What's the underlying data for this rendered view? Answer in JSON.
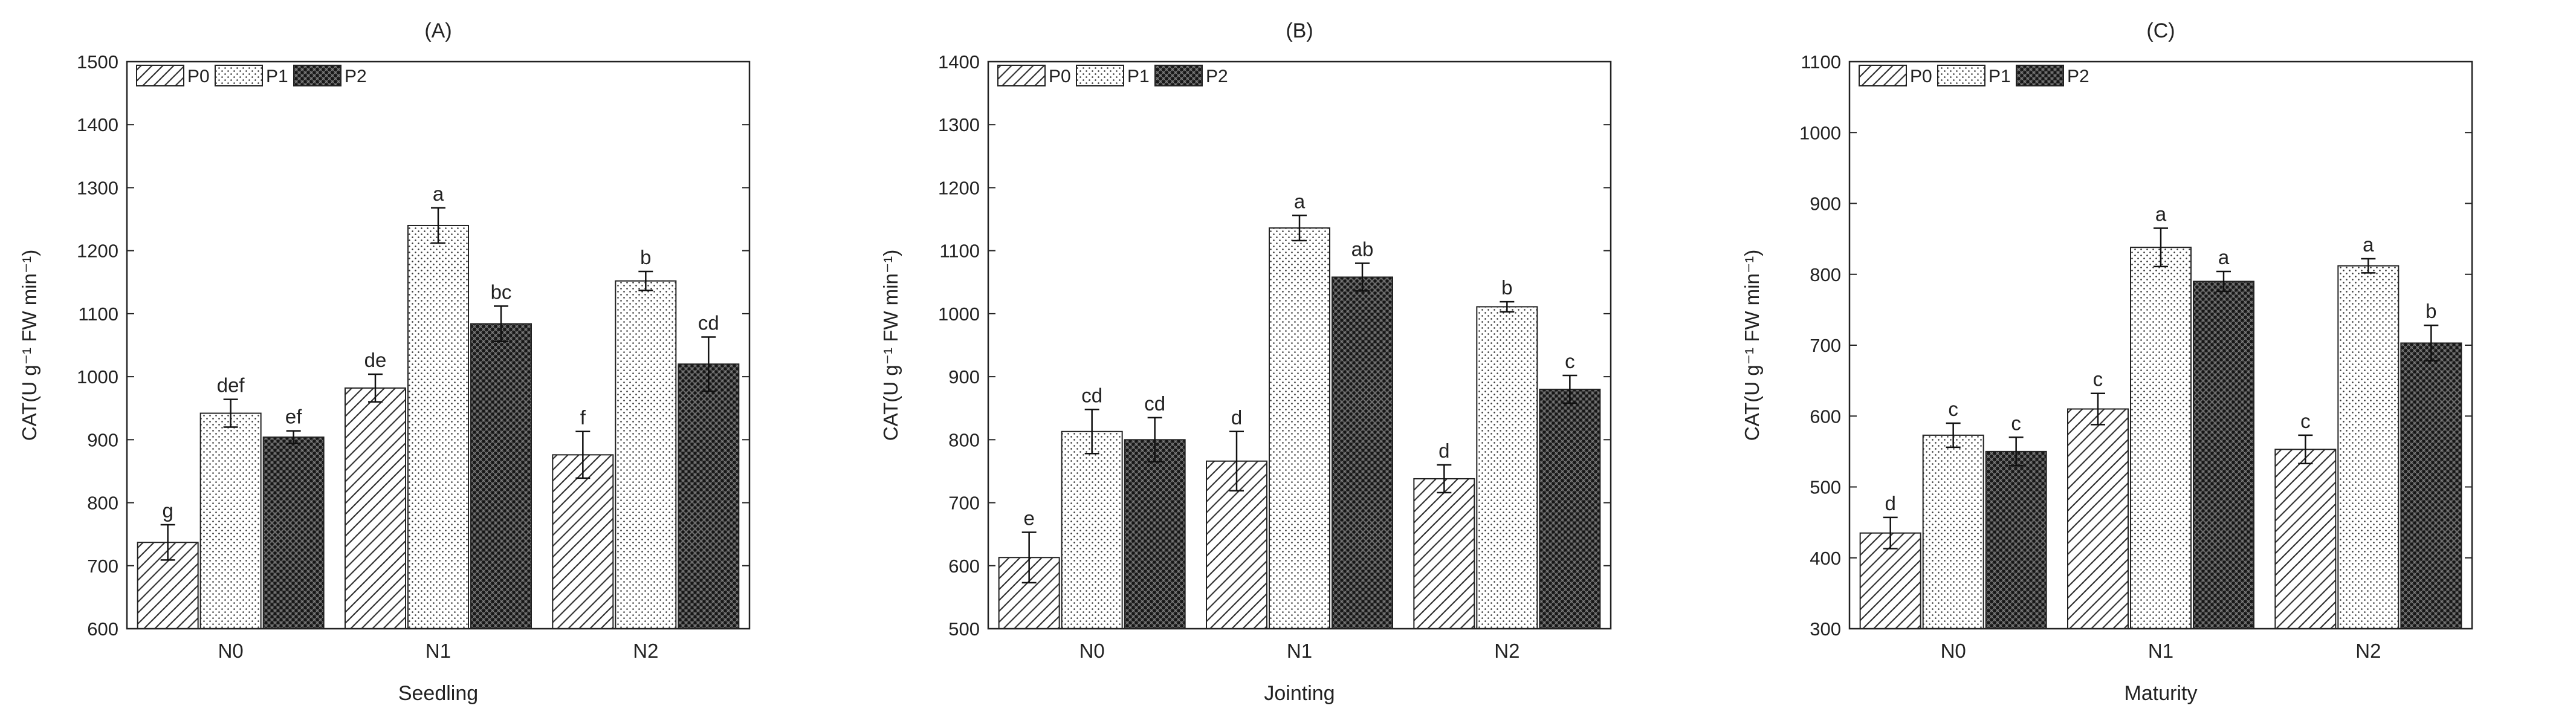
{
  "chart_data": [
    {
      "type": "bar",
      "title": "(A)",
      "xlabel": "Seedling",
      "ylabel": "CAT(U g⁻¹ FW min⁻¹)",
      "categories": [
        "N0",
        "N1",
        "N2"
      ],
      "ylim": [
        600,
        1500
      ],
      "yticks": [
        600,
        700,
        800,
        900,
        1000,
        1100,
        1200,
        1300,
        1400,
        1500
      ],
      "series": [
        {
          "name": "P0",
          "values": [
            737,
            982,
            876
          ],
          "errors": [
            28,
            22,
            37
          ],
          "letters": [
            "g",
            "de",
            "f"
          ]
        },
        {
          "name": "P1",
          "values": [
            942,
            1240,
            1152
          ],
          "errors": [
            22,
            28,
            15
          ],
          "letters": [
            "def",
            "a",
            "b"
          ]
        },
        {
          "name": "P2",
          "values": [
            904,
            1084,
            1020
          ],
          "errors": [
            10,
            28,
            43
          ],
          "letters": [
            "ef",
            "bc",
            "cd"
          ]
        }
      ],
      "legend": "top-left"
    },
    {
      "type": "bar",
      "title": "(B)",
      "xlabel": "Jointing",
      "ylabel": "CAT(U g⁻¹ FW min⁻¹)",
      "categories": [
        "N0",
        "N1",
        "N2"
      ],
      "ylim": [
        500,
        1400
      ],
      "yticks": [
        500,
        600,
        700,
        800,
        900,
        1000,
        1100,
        1200,
        1300,
        1400
      ],
      "series": [
        {
          "name": "P0",
          "values": [
            613,
            766,
            738
          ],
          "errors": [
            40,
            47,
            22
          ],
          "letters": [
            "e",
            "d",
            "d"
          ]
        },
        {
          "name": "P1",
          "values": [
            813,
            1136,
            1011
          ],
          "errors": [
            35,
            20,
            8
          ],
          "letters": [
            "cd",
            "a",
            "b"
          ]
        },
        {
          "name": "P2",
          "values": [
            800,
            1058,
            880
          ],
          "errors": [
            35,
            22,
            22
          ],
          "letters": [
            "cd",
            "ab",
            "c"
          ]
        }
      ],
      "legend": "top-left"
    },
    {
      "type": "bar",
      "title": "(C)",
      "xlabel": "Maturity",
      "ylabel": "CAT(U g⁻¹ FW min⁻¹)",
      "categories": [
        "N0",
        "N1",
        "N2"
      ],
      "ylim": [
        300,
        1100
      ],
      "yticks": [
        300,
        400,
        500,
        600,
        700,
        800,
        900,
        1000,
        1100
      ],
      "series": [
        {
          "name": "P0",
          "values": [
            435,
            610,
            553
          ],
          "errors": [
            22,
            22,
            20
          ],
          "letters": [
            "d",
            "c",
            "c"
          ]
        },
        {
          "name": "P1",
          "values": [
            573,
            838,
            812
          ],
          "errors": [
            17,
            27,
            10
          ],
          "letters": [
            "c",
            "a",
            "a"
          ]
        },
        {
          "name": "P2",
          "values": [
            550,
            790,
            703
          ],
          "errors": [
            20,
            14,
            25
          ],
          "letters": [
            "c",
            "a",
            "b"
          ]
        }
      ],
      "legend": "top-left"
    }
  ]
}
